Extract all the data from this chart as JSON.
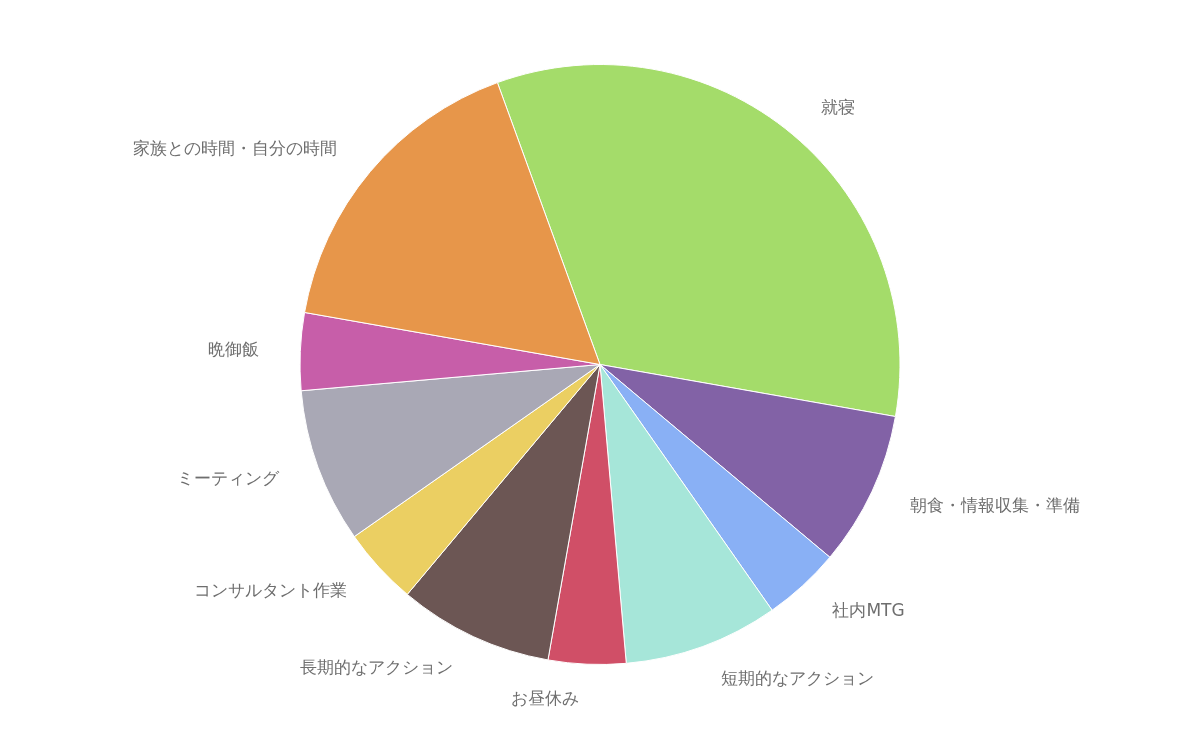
{
  "chart_data": {
    "type": "pie",
    "categories": [
      "就寝",
      "朝食・情報収集・準備",
      "社内MTG",
      "短期的なアクション",
      "お昼休み",
      "長期的なアクション",
      "コンサルタント作業",
      "ミーティング",
      "晩御飯",
      "家族との時間・自分の時間"
    ],
    "values": [
      33.33,
      8.33,
      4.17,
      8.33,
      4.17,
      8.33,
      4.17,
      8.33,
      4.17,
      16.67
    ],
    "colors": [
      "#a4dc6a",
      "#8262a6",
      "#89b0f5",
      "#a6e6d9",
      "#d04f67",
      "#6c5654",
      "#ebcf62",
      "#a9a8b5",
      "#c75ea9",
      "#e7964a"
    ],
    "legend": false
  }
}
